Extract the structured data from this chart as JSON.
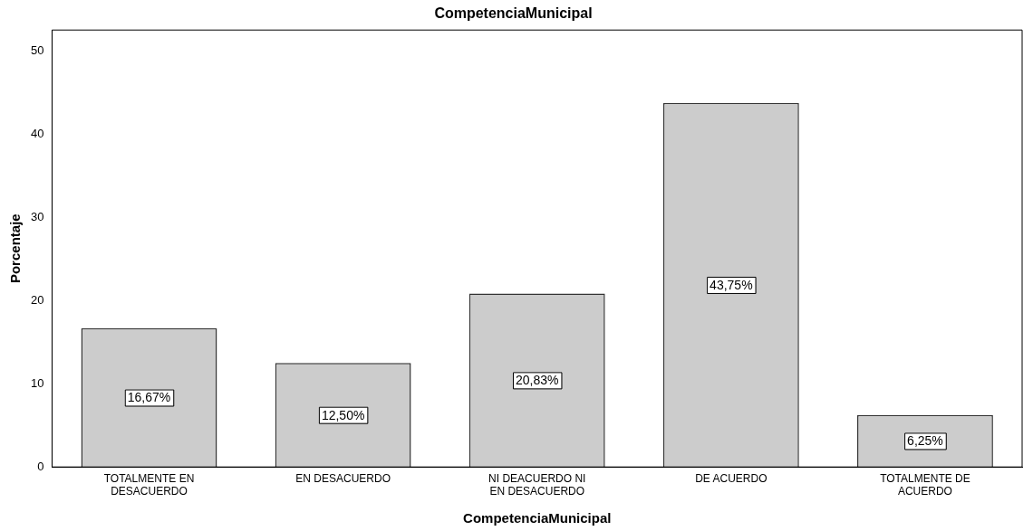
{
  "chart_data": {
    "type": "bar",
    "title": "CompetenciaMunicipal",
    "xlabel": "CompetenciaMunicipal",
    "ylabel": "Porcentaje",
    "categories": [
      "TOTALMENTE EN DESACUERDO",
      "EN DESACUERDO",
      "NI DEACUERDO NI EN DESACUERDO",
      "DE ACUERDO",
      "TOTALMENTE DE ACUERDO"
    ],
    "values": [
      16.67,
      12.5,
      20.83,
      43.75,
      6.25
    ],
    "value_labels": [
      "16,67%",
      "12,50%",
      "20,83%",
      "43,75%",
      "6,25%"
    ],
    "color": "#cccccc",
    "ylim": [
      0,
      52.5
    ],
    "yticks": [
      0,
      10,
      20,
      30,
      40,
      50
    ],
    "grid": false,
    "legend": false
  }
}
